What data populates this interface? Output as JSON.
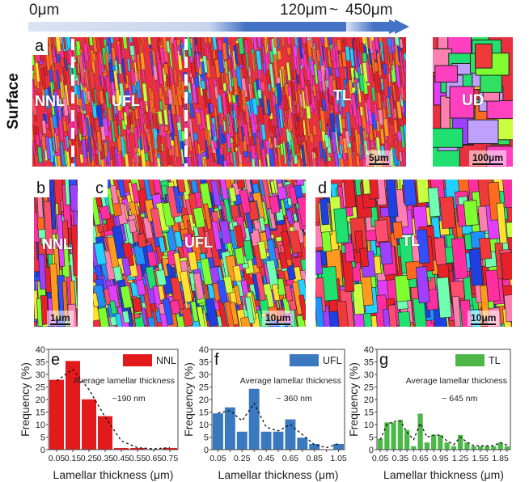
{
  "header": {
    "arrow1": {
      "start_label": "0μm",
      "end_label": "120μm"
    },
    "tilde": "~",
    "arrow2": {
      "label": "450μm"
    },
    "arrow_color": "#4472c4",
    "arrow_fade_color": "#dbe3f4"
  },
  "side_label": "Surface",
  "panels": {
    "a": {
      "letter": "a",
      "regions": [
        "NNL",
        "UFL",
        "TL"
      ],
      "scale": "5μm"
    },
    "ud": {
      "region": "UD",
      "scale": "100μm"
    },
    "b": {
      "letter": "b",
      "region": "NNL",
      "scale": "1μm"
    },
    "c": {
      "letter": "c",
      "region": "UFL",
      "scale": "10μm"
    },
    "d": {
      "letter": "d",
      "region": "TL",
      "scale": "10μm"
    }
  },
  "chart_data": [
    {
      "type": "bar",
      "panel": "e",
      "legend": "NNL",
      "color": "#e31a1c",
      "annotation_line1": "Average lamellar thickness",
      "annotation_line2": "~190 nm",
      "xlabel": "Lamellar thickness (μm)",
      "ylabel": "Frequency (%)",
      "ylim": [
        0,
        40
      ],
      "yticks": [
        0,
        5,
        10,
        15,
        20,
        25,
        30,
        35,
        40
      ],
      "categories": [
        "0.05",
        "0.15",
        "0.25",
        "0.35",
        "0.45",
        "0.55",
        "0.65",
        "0.75"
      ],
      "xtick_labels": [
        "0.05",
        "0.15",
        "0.25",
        "0.35",
        "0.45",
        "0.55",
        "0.65",
        "0.75"
      ],
      "values": [
        28.0,
        35.5,
        20.2,
        13.5,
        0.8,
        0.8,
        0.3,
        0.8
      ],
      "fit_curve": [
        27.5,
        32.0,
        24.0,
        13.0,
        3.5,
        0.8,
        0.3,
        0.8
      ],
      "legend_position": "top-right",
      "grid": false
    },
    {
      "type": "bar",
      "panel": "f",
      "legend": "UFL",
      "color": "#3a78bf",
      "annotation_line1": "Average lamellar thickness",
      "annotation_line2": "~ 360 nm",
      "xlabel": "Lamellar thickness (μm)",
      "ylabel": "Frequency (%)",
      "ylim": [
        0,
        40
      ],
      "yticks": [
        0,
        5,
        10,
        15,
        20,
        25,
        30,
        35,
        40
      ],
      "categories": [
        "0.05",
        "0.15",
        "0.25",
        "0.35",
        "0.45",
        "0.55",
        "0.65",
        "0.75",
        "0.85",
        "0.95",
        "1.05"
      ],
      "xtick_labels": [
        "0.05",
        "0.25",
        "0.45",
        "0.65",
        "0.85",
        "1.05"
      ],
      "values": [
        14.6,
        17.0,
        7.3,
        24.4,
        7.3,
        7.3,
        12.2,
        4.9,
        2.4,
        0,
        2.4
      ],
      "fit_curve": [
        14.6,
        15.5,
        11.5,
        18.5,
        9.0,
        7.5,
        10.0,
        6.0,
        2.0,
        0.8,
        2.4
      ],
      "legend_position": "top-right",
      "grid": false
    },
    {
      "type": "bar",
      "panel": "g",
      "legend": "TL",
      "color": "#4db848",
      "annotation_line1": "Average lamellar thickness",
      "annotation_line2": "~ 645 nm",
      "xlabel": "Lamellar thickness (μm)",
      "ylabel": "Frequency (%)",
      "ylim": [
        0,
        40
      ],
      "yticks": [
        0,
        5,
        10,
        15,
        20,
        25,
        30,
        35,
        40
      ],
      "categories": [
        "0.05",
        "0.15",
        "0.25",
        "0.35",
        "0.45",
        "0.55",
        "0.65",
        "0.75",
        "0.85",
        "0.95",
        "1.05",
        "1.15",
        "1.25",
        "1.35",
        "1.45",
        "1.55",
        "1.65",
        "1.75",
        "1.85",
        "1.95"
      ],
      "xtick_labels": [
        "0.05",
        "0.35",
        "0.65",
        "0.95",
        "1.25",
        "1.55",
        "1.85"
      ],
      "values": [
        4.5,
        11.0,
        11.0,
        12.0,
        8.0,
        1.5,
        14.5,
        3.0,
        6.0,
        6.0,
        3.0,
        1.5,
        6.0,
        3.0,
        1.5,
        1.5,
        1.5,
        1.5,
        3.0,
        1.5
      ],
      "fit_curve": [
        4.0,
        10.0,
        11.2,
        11.5,
        7.0,
        4.0,
        10.5,
        5.0,
        5.8,
        5.8,
        3.5,
        2.0,
        5.0,
        3.0,
        1.6,
        1.5,
        1.5,
        1.6,
        2.8,
        1.8
      ],
      "legend_position": "top-right",
      "grid": false
    }
  ]
}
